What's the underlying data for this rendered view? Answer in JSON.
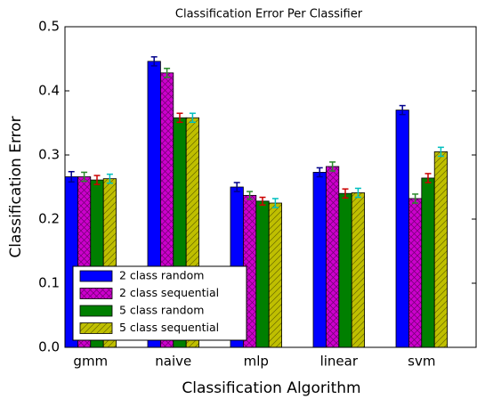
{
  "chart_data": {
    "type": "bar",
    "title": "Classification Error Per Classifier",
    "x_label": "Classification Algorithm",
    "y_label": "Classification Error",
    "categories": [
      "gmm",
      "naive",
      "mlp",
      "linear",
      "svm"
    ],
    "series": [
      {
        "name": "2 class random",
        "color": "#0000ff",
        "error_color": "#00008b",
        "hatch": "none",
        "values": [
          0.266,
          0.446,
          0.25,
          0.273,
          0.37
        ],
        "errors": [
          0.008,
          0.007,
          0.007,
          0.007,
          0.007
        ]
      },
      {
        "name": "2 class sequential",
        "color": "#cc00cc",
        "error_color": "#2a8a2a",
        "hatch": "x",
        "values": [
          0.266,
          0.428,
          0.237,
          0.282,
          0.232
        ],
        "errors": [
          0.007,
          0.007,
          0.006,
          0.007,
          0.007
        ]
      },
      {
        "name": "5 class random",
        "color": "#007f00",
        "error_color": "#cc0000",
        "hatch": "none",
        "values": [
          0.261,
          0.358,
          0.228,
          0.24,
          0.264
        ],
        "errors": [
          0.007,
          0.007,
          0.006,
          0.007,
          0.007
        ]
      },
      {
        "name": "5 class sequential",
        "color": "#bfbf00",
        "error_color": "#00bfbf",
        "hatch": "/",
        "values": [
          0.263,
          0.358,
          0.225,
          0.241,
          0.305
        ],
        "errors": [
          0.007,
          0.007,
          0.007,
          0.007,
          0.007
        ]
      }
    ],
    "ylim": [
      0,
      0.5
    ],
    "yticks": [
      {
        "value": 0,
        "label": "0.0"
      },
      0.1,
      0.2,
      0.3,
      0.4,
      0.5
    ],
    "legend": "lower left",
    "grid": false
  }
}
